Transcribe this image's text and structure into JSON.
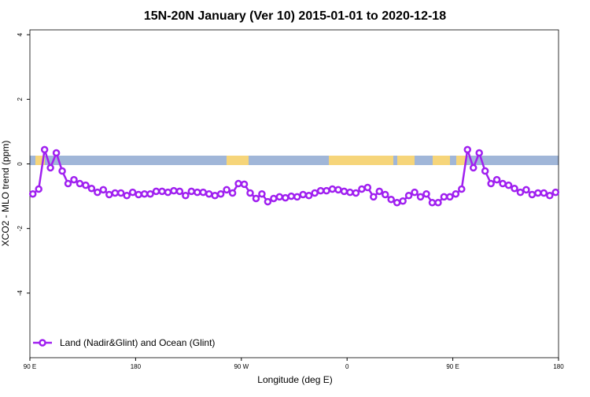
{
  "chart_data": {
    "type": "line",
    "title": "15N-20N January (Ver 10)   2015-01-01 to 2020-12-18",
    "x_label": "Longitude (deg E)",
    "y_label": "XCO2 - MLO trend (ppm)",
    "x": [
      92.5,
      97.5,
      102.5,
      107.5,
      112.5,
      117.5,
      122.5,
      127.5,
      132.5,
      137.5,
      142.5,
      147.5,
      152.5,
      157.5,
      162.5,
      167.5,
      172.5,
      177.5,
      182.5,
      187.5,
      192.5,
      197.5,
      202.5,
      207.5,
      212.5,
      217.5,
      222.5,
      227.5,
      232.5,
      237.5,
      242.5,
      247.5,
      252.5,
      257.5,
      262.5,
      267.5,
      272.5,
      277.5,
      282.5,
      287.5,
      292.5,
      297.5,
      302.5,
      307.5,
      312.5,
      317.5,
      322.5,
      327.5,
      332.5,
      337.5,
      342.5,
      347.5,
      352.5,
      357.5,
      362.5,
      367.5,
      372.5,
      377.5,
      382.5,
      387.5,
      392.5,
      397.5,
      402.5,
      407.5,
      412.5,
      417.5,
      422.5,
      427.5,
      432.5,
      437.5,
      442.5,
      447.5,
      452.5,
      457.5,
      462.5,
      467.5,
      472.5,
      477.5,
      482.5,
      487.5,
      492.5,
      497.5,
      502.5,
      507.5,
      512.5,
      517.5,
      522.5,
      527.5,
      532.5,
      537.5
    ],
    "series": [
      {
        "name": "Land (Nadir&Glint) and Ocean (Glint)",
        "color": "#a020f0",
        "values": [
          -0.93,
          -0.78,
          0.44,
          -0.12,
          0.34,
          -0.22,
          -0.61,
          -0.49,
          -0.61,
          -0.66,
          -0.76,
          -0.88,
          -0.8,
          -0.95,
          -0.9,
          -0.9,
          -0.98,
          -0.88,
          -0.95,
          -0.93,
          -0.93,
          -0.85,
          -0.85,
          -0.88,
          -0.83,
          -0.85,
          -0.98,
          -0.85,
          -0.88,
          -0.88,
          -0.93,
          -0.98,
          -0.93,
          -0.8,
          -0.9,
          -0.61,
          -0.63,
          -0.9,
          -1.07,
          -0.93,
          -1.17,
          -1.07,
          -1.02,
          -1.05,
          -1.0,
          -1.02,
          -0.95,
          -0.98,
          -0.9,
          -0.83,
          -0.83,
          -0.78,
          -0.8,
          -0.85,
          -0.88,
          -0.9,
          -0.78,
          -0.73,
          -1.02,
          -0.85,
          -0.95,
          -1.1,
          -1.2,
          -1.15,
          -0.98,
          -0.88,
          -1.02,
          -0.93,
          -1.2,
          -1.2,
          -1.02,
          -1.02,
          -0.93,
          -0.78,
          0.44,
          -0.12,
          0.34,
          -0.22,
          -0.61,
          -0.49,
          -0.61,
          -0.66,
          -0.76,
          -0.88,
          -0.8,
          -0.95,
          -0.9,
          -0.9,
          -0.98,
          -0.88
        ]
      }
    ],
    "xlim": [
      90,
      540
    ],
    "xticks": [
      {
        "value": 90,
        "label": "90 E"
      },
      {
        "value": 180,
        "label": "180"
      },
      {
        "value": 270,
        "label": "90 W"
      },
      {
        "value": 360,
        "label": "0"
      },
      {
        "value": 450,
        "label": "90 E"
      },
      {
        "value": 540,
        "label": "180"
      }
    ],
    "ylim": [
      -6,
      4.15
    ],
    "yticks": [
      -4,
      -2,
      0,
      2,
      4
    ],
    "legend": "bottom-left"
  }
}
